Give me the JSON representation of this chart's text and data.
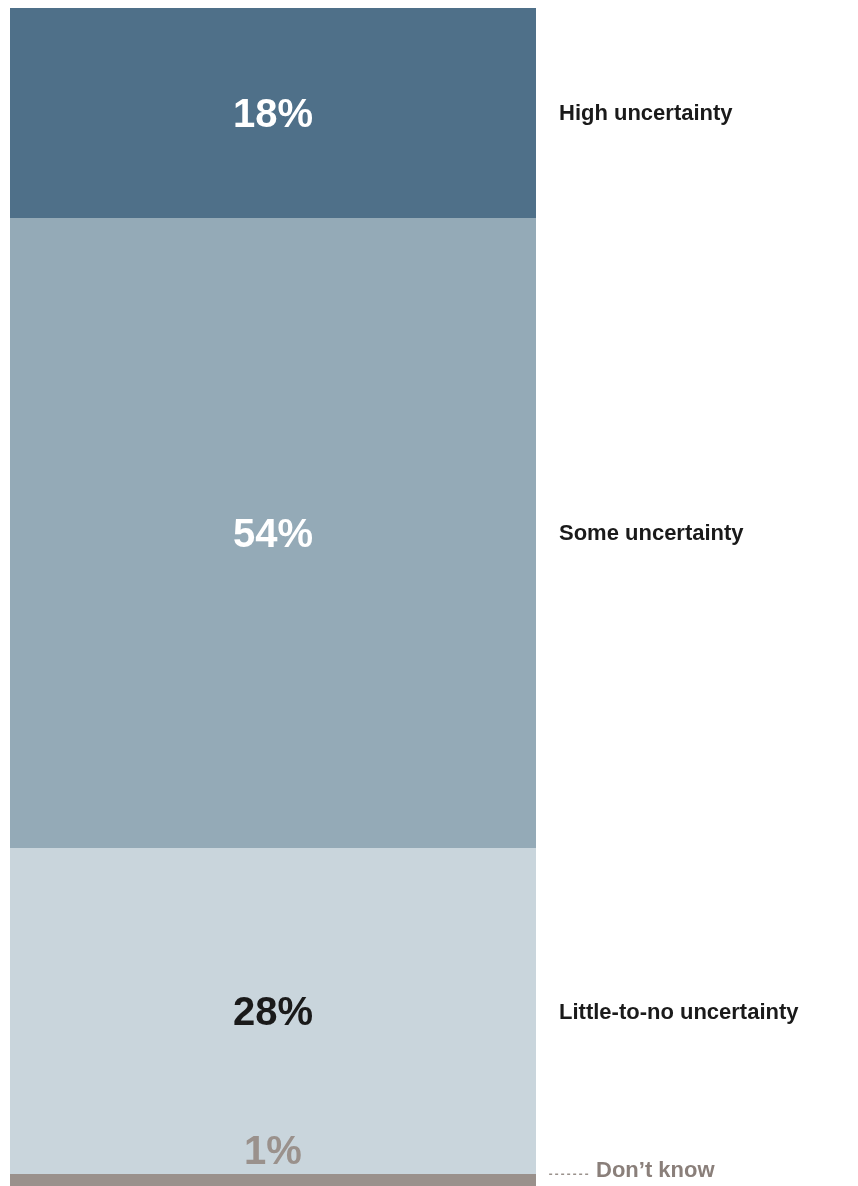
{
  "chart_data": {
    "type": "bar",
    "stacked": true,
    "relative": false,
    "categories": [
      null
    ],
    "ylim": [
      0,
      101
    ],
    "tick_labels": false,
    "series": [
      {
        "name": "Don’t know",
        "color": "#9a918c",
        "values": [
          1
        ],
        "value_labels": [
          "1%"
        ]
      },
      {
        "name": "Little-to-no uncertainty",
        "color": "#c9d5dc",
        "values": [
          28
        ],
        "value_labels": [
          "28%"
        ]
      },
      {
        "name": "Some uncertainty",
        "color": "#94aab7",
        "values": [
          54
        ],
        "value_labels": [
          "54%"
        ]
      },
      {
        "name": "High uncertainty",
        "color": "#4f7089",
        "values": [
          18
        ],
        "value_labels": [
          "18%"
        ]
      }
    ]
  }
}
